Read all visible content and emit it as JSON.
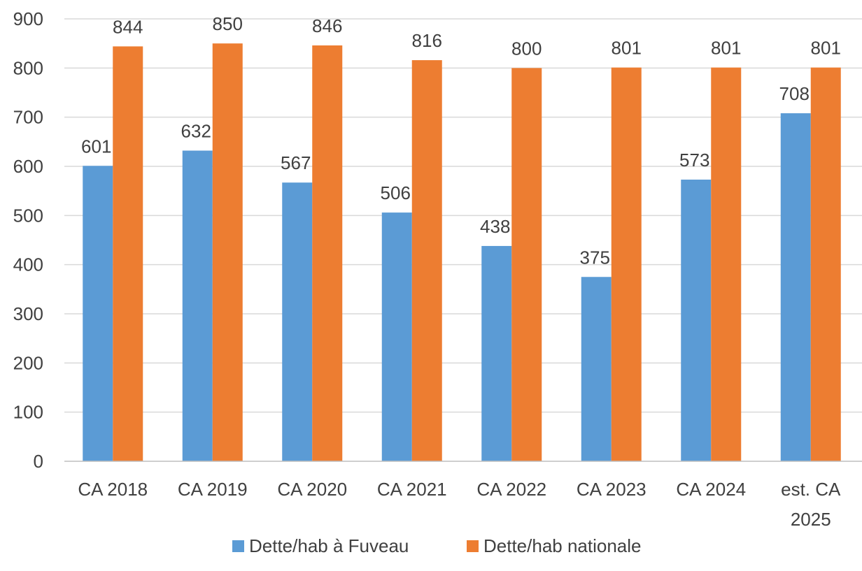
{
  "chart_data": {
    "type": "bar",
    "title": "",
    "xlabel": "",
    "ylabel": "",
    "ylim": [
      0,
      900
    ],
    "yticks": [
      "0",
      "100",
      "200",
      "300",
      "400",
      "500",
      "600",
      "700",
      "800",
      "900"
    ],
    "grid": true,
    "legend_position": "bottom",
    "categories": [
      [
        "CA 2018"
      ],
      [
        "CA 2019"
      ],
      [
        "CA 2020"
      ],
      [
        "CA 2021"
      ],
      [
        "CA 2022"
      ],
      [
        "CA 2023"
      ],
      [
        "CA 2024"
      ],
      [
        "est. CA",
        "2025"
      ]
    ],
    "series": [
      {
        "name": "Dette/hab à Fuveau",
        "color": "#5b9bd5",
        "values": [
          601,
          632,
          567,
          506,
          438,
          375,
          573,
          708
        ],
        "labels": [
          "601",
          "632",
          "567",
          "506",
          "438",
          "375",
          "573",
          "708"
        ]
      },
      {
        "name": "Dette/hab nationale",
        "color": "#ed7d31",
        "values": [
          844,
          850,
          846,
          816,
          800,
          801,
          801,
          801
        ],
        "labels": [
          "844",
          "850",
          "846",
          "816",
          "800",
          "801",
          "801",
          "801"
        ]
      }
    ]
  }
}
